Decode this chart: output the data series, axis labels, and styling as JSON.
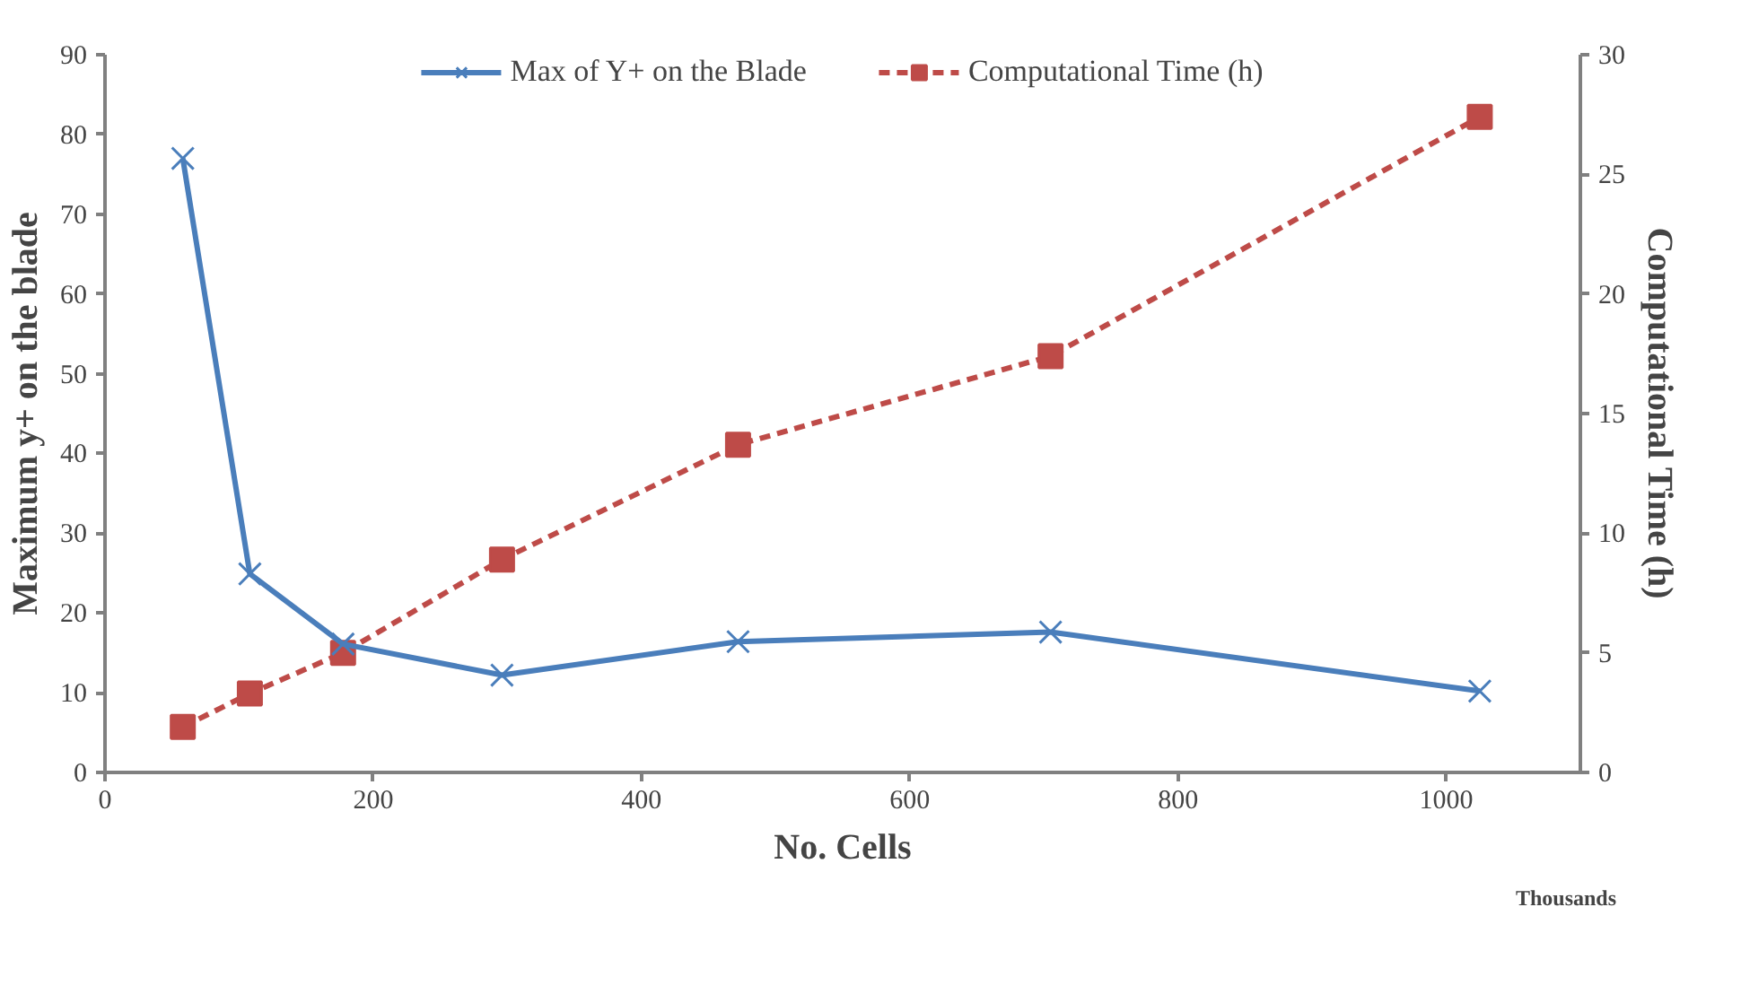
{
  "chart_data": {
    "type": "line",
    "xlabel": "No. Cells",
    "ylabel": "Maximum y+ on the blade",
    "y2label": "Computational Time (h)",
    "annotations": [
      "Thousands"
    ],
    "x": [
      58,
      108,
      177.5,
      296,
      472,
      705,
      1025
    ],
    "series": [
      {
        "name": "Max of Y+ on the Blade",
        "color": "#4a7ebb",
        "values": [
          77.0,
          24.9,
          16.1,
          12.2,
          16.4,
          17.6,
          10.2
        ],
        "marker": "cross",
        "line_style": "solid"
      },
      {
        "name": "Computational Time (h)",
        "color": "#be4b48",
        "values": [
          1.9,
          3.3,
          5.0,
          8.9,
          13.7,
          17.4,
          27.4
        ],
        "marker": "square",
        "line_style": "dashed",
        "axis": "y2"
      }
    ],
    "xlim": [
      0,
      1100
    ],
    "xticks": [
      0,
      200,
      400,
      600,
      800,
      1000
    ],
    "ylim": [
      0,
      90
    ],
    "yticks": [
      0,
      10,
      20,
      30,
      40,
      50,
      60,
      70,
      80,
      90
    ],
    "y2lim": [
      0,
      30
    ],
    "y2ticks": [
      0,
      5,
      10,
      15,
      20,
      25,
      30
    ],
    "grid": false,
    "legend": "top"
  }
}
